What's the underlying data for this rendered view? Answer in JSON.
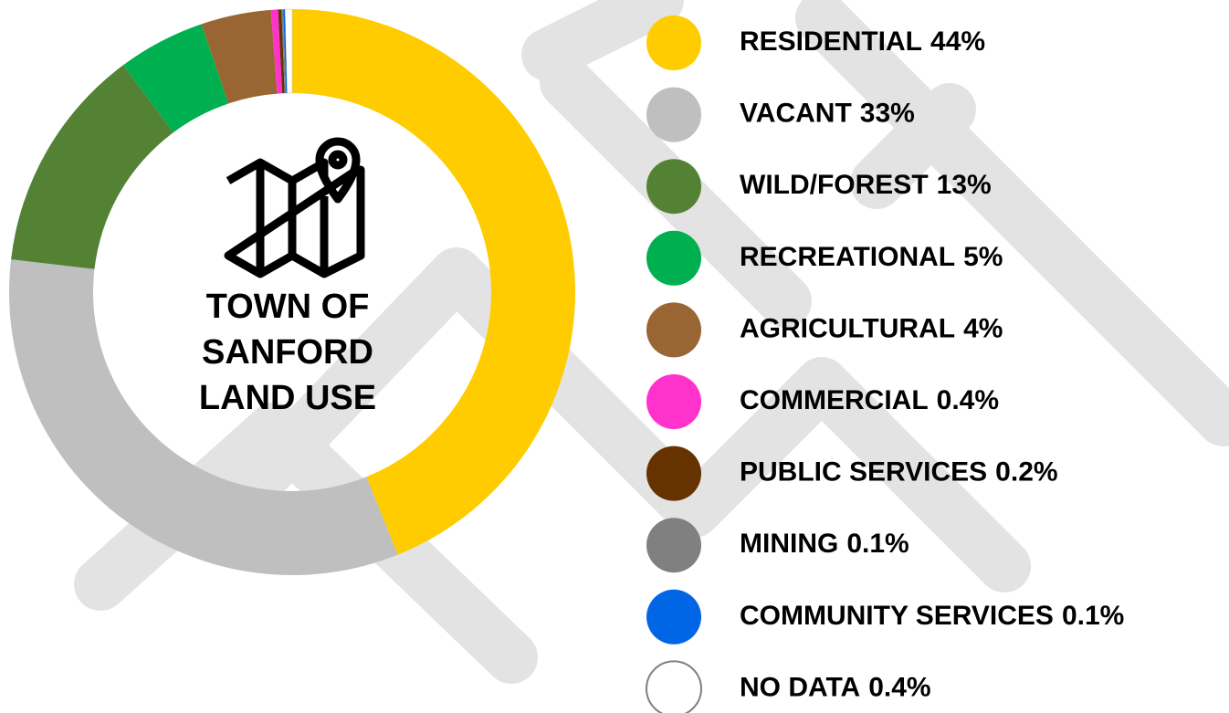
{
  "chart_data": {
    "type": "donut",
    "title": [
      "TOWN OF",
      "SANFORD",
      "LAND USE"
    ],
    "categories": [
      "RESIDENTIAL",
      "VACANT",
      "WILD/FOREST",
      "RECREATIONAL",
      "AGRICULTURAL",
      "COMMERCIAL",
      "PUBLIC SERVICES",
      "MINING",
      "COMMUNITY SERVICES",
      "NO DATA"
    ],
    "values": [
      44,
      33,
      13,
      5,
      4,
      0.4,
      0.2,
      0.1,
      0.1,
      0.4
    ],
    "value_labels": [
      "44%",
      "33%",
      "13%",
      "5%",
      "4%",
      "0.4%",
      "0.2%",
      "0.1%",
      "0.1%",
      "0.4%"
    ],
    "colors": [
      "#FFCC00",
      "#BFBFBF",
      "#548235",
      "#00B050",
      "#996633",
      "#FF33CC",
      "#663300",
      "#808080",
      "#0066E6",
      "#FFFFFF"
    ]
  }
}
